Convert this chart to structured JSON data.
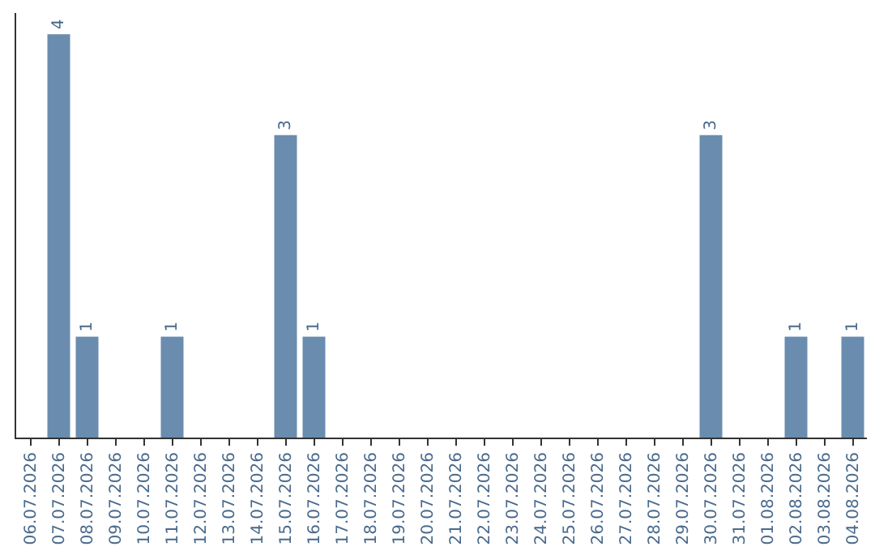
{
  "chart_data": {
    "type": "bar",
    "categories": [
      "06.07.2026",
      "07.07.2026",
      "08.07.2026",
      "09.07.2026",
      "10.07.2026",
      "11.07.2026",
      "12.07.2026",
      "13.07.2026",
      "14.07.2026",
      "15.07.2026",
      "16.07.2026",
      "17.07.2026",
      "18.07.2026",
      "19.07.2026",
      "20.07.2026",
      "21.07.2026",
      "22.07.2026",
      "23.07.2026",
      "24.07.2026",
      "25.07.2026",
      "26.07.2026",
      "27.07.2026",
      "28.07.2026",
      "29.07.2026",
      "30.07.2026",
      "31.07.2026",
      "01.08.2026",
      "02.08.2026",
      "03.08.2026",
      "04.08.2026"
    ],
    "values": [
      0,
      4,
      1,
      0,
      0,
      1,
      0,
      0,
      0,
      3,
      1,
      0,
      0,
      0,
      0,
      0,
      0,
      0,
      0,
      0,
      0,
      0,
      0,
      0,
      3,
      0,
      0,
      1,
      0,
      1
    ],
    "value_labels": [
      null,
      "4",
      "1",
      null,
      null,
      "1",
      null,
      null,
      null,
      "3",
      "1",
      null,
      null,
      null,
      null,
      null,
      null,
      null,
      null,
      null,
      null,
      null,
      null,
      null,
      "3",
      null,
      null,
      "1",
      null,
      "1"
    ],
    "color": "#6a8caf",
    "grid": false,
    "legend": false
  }
}
